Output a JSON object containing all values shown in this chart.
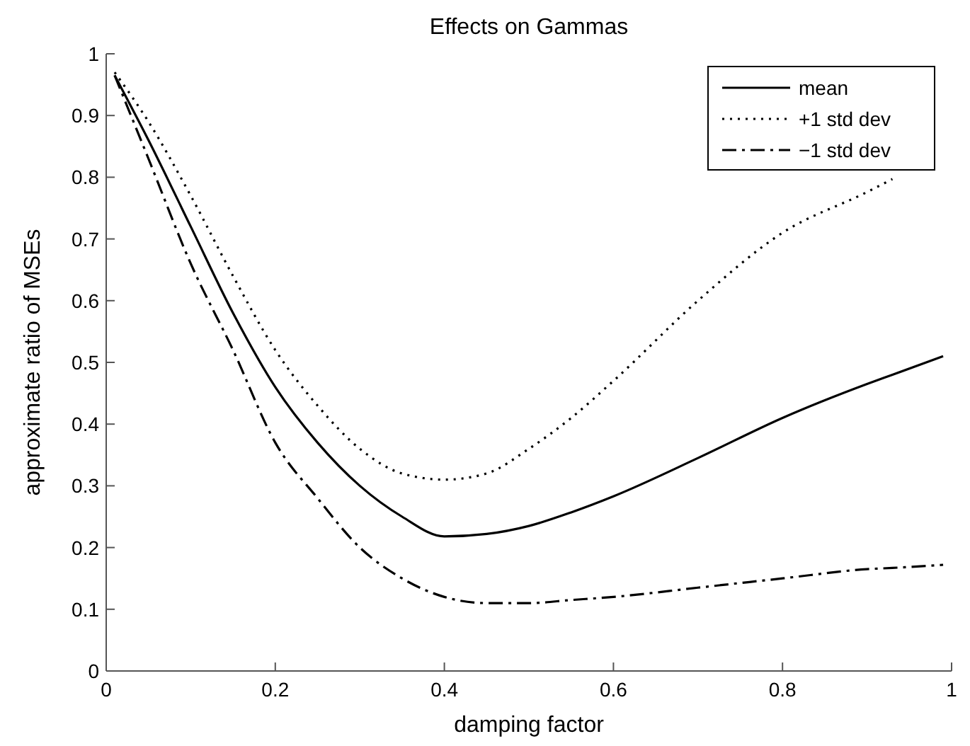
{
  "chart_data": {
    "type": "line",
    "title": "Effects on Gammas",
    "xlabel": "damping factor",
    "ylabel": "approximate ratio of MSEs",
    "xlim": [
      0,
      1
    ],
    "ylim": [
      0,
      1
    ],
    "xticks": [
      0,
      0.2,
      0.4,
      0.6,
      0.8,
      1
    ],
    "yticks": [
      0,
      0.1,
      0.2,
      0.3,
      0.4,
      0.5,
      0.6,
      0.7,
      0.8,
      0.9,
      1
    ],
    "legend": "top right",
    "x": [
      0.01,
      0.05,
      0.1,
      0.15,
      0.2,
      0.25,
      0.3,
      0.35,
      0.4,
      0.45,
      0.5,
      0.55,
      0.6,
      0.7,
      0.8,
      0.9,
      0.93,
      0.99
    ],
    "series": [
      {
        "name": "mean",
        "color": "#000000",
        "line_style": "solid",
        "values": [
          0.965,
          0.86,
          0.72,
          0.58,
          0.46,
          0.37,
          0.3,
          0.25,
          0.218,
          0.222,
          0.235,
          0.257,
          0.283,
          0.345,
          0.41,
          0.465,
          0.48,
          0.51
        ]
      },
      {
        "name": "+1 std dev",
        "color": "#000000",
        "line_style": "dotted",
        "values": [
          0.97,
          0.89,
          0.77,
          0.64,
          0.52,
          0.43,
          0.36,
          0.32,
          0.31,
          0.32,
          0.36,
          0.41,
          0.47,
          0.6,
          0.71,
          0.776,
          0.797,
          null
        ]
      },
      {
        "name": "−1 std dev",
        "color": "#000000",
        "line_style": "dashdot",
        "values": [
          0.965,
          0.83,
          0.66,
          0.52,
          0.37,
          0.28,
          0.2,
          0.15,
          0.12,
          0.11,
          0.11,
          0.115,
          0.12,
          0.135,
          0.15,
          0.165,
          0.167,
          0.172
        ]
      }
    ]
  }
}
